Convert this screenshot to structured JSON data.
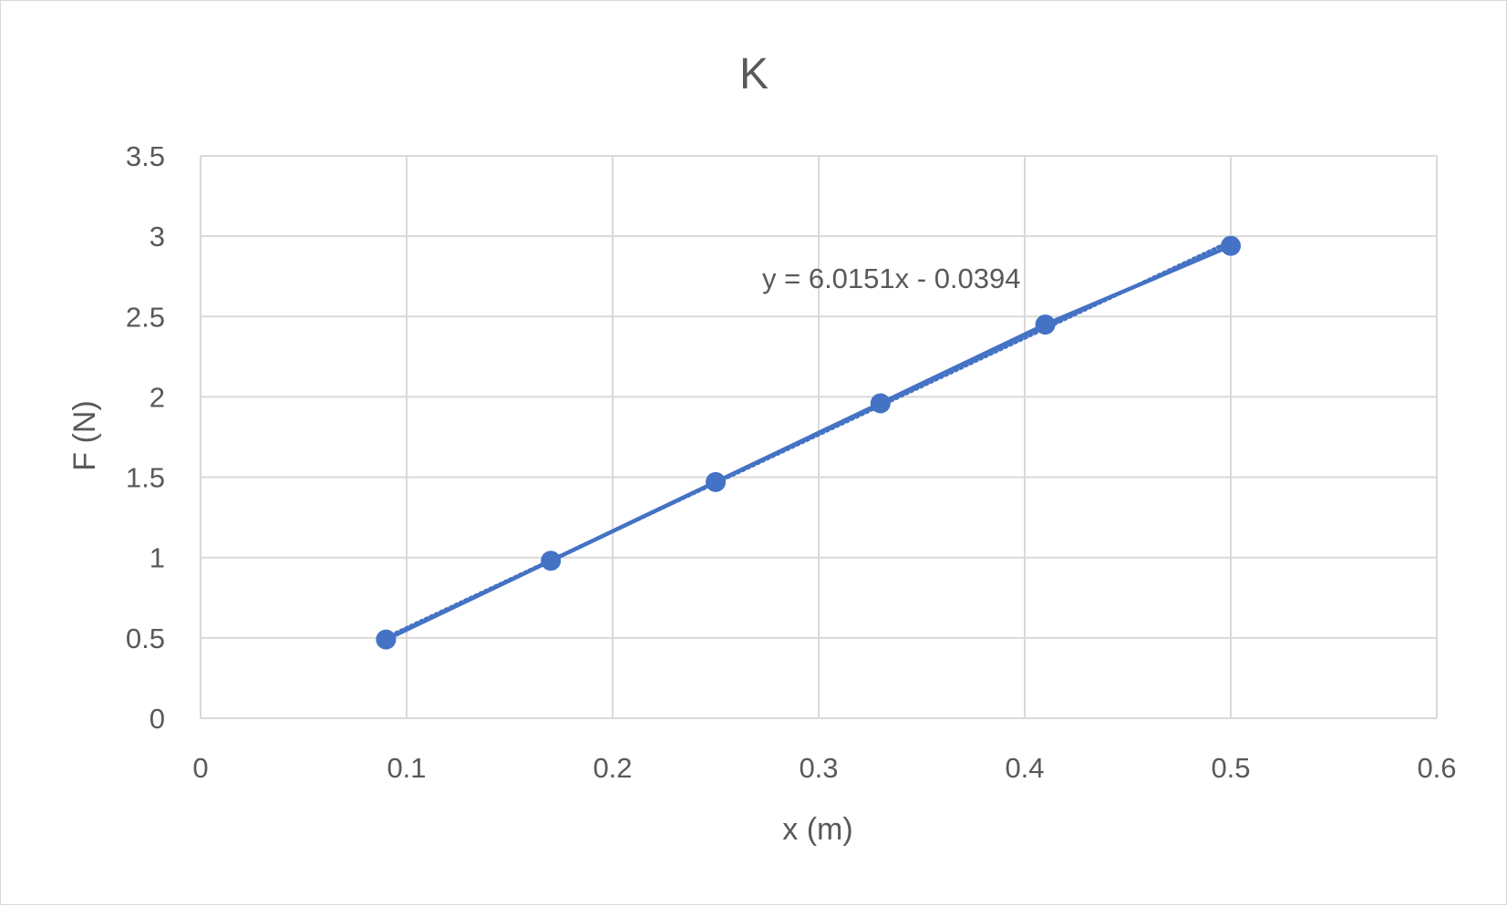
{
  "chart_data": {
    "type": "scatter",
    "title": "K",
    "xlabel": "x (m)",
    "ylabel": "F (N)",
    "xlim": [
      0,
      0.6
    ],
    "ylim": [
      0,
      3.5
    ],
    "x_ticks": [
      "0",
      "0.1",
      "0.2",
      "0.3",
      "0.4",
      "0.5",
      "0.6"
    ],
    "y_ticks": [
      "0",
      "0.5",
      "1",
      "1.5",
      "2",
      "2.5",
      "3",
      "3.5"
    ],
    "grid": true,
    "legend": "none",
    "series": [
      {
        "x": [
          0.09,
          0.17,
          0.25,
          0.33,
          0.41,
          0.5
        ],
        "y": [
          0.49,
          0.98,
          1.47,
          1.96,
          2.45,
          2.94
        ],
        "color": "#4472c4",
        "connected": true
      }
    ],
    "trendline": {
      "type": "linear",
      "slope": 6.0151,
      "intercept": -0.0394,
      "equation": "y = 6.0151x - 0.0394",
      "style": "dotted"
    }
  }
}
